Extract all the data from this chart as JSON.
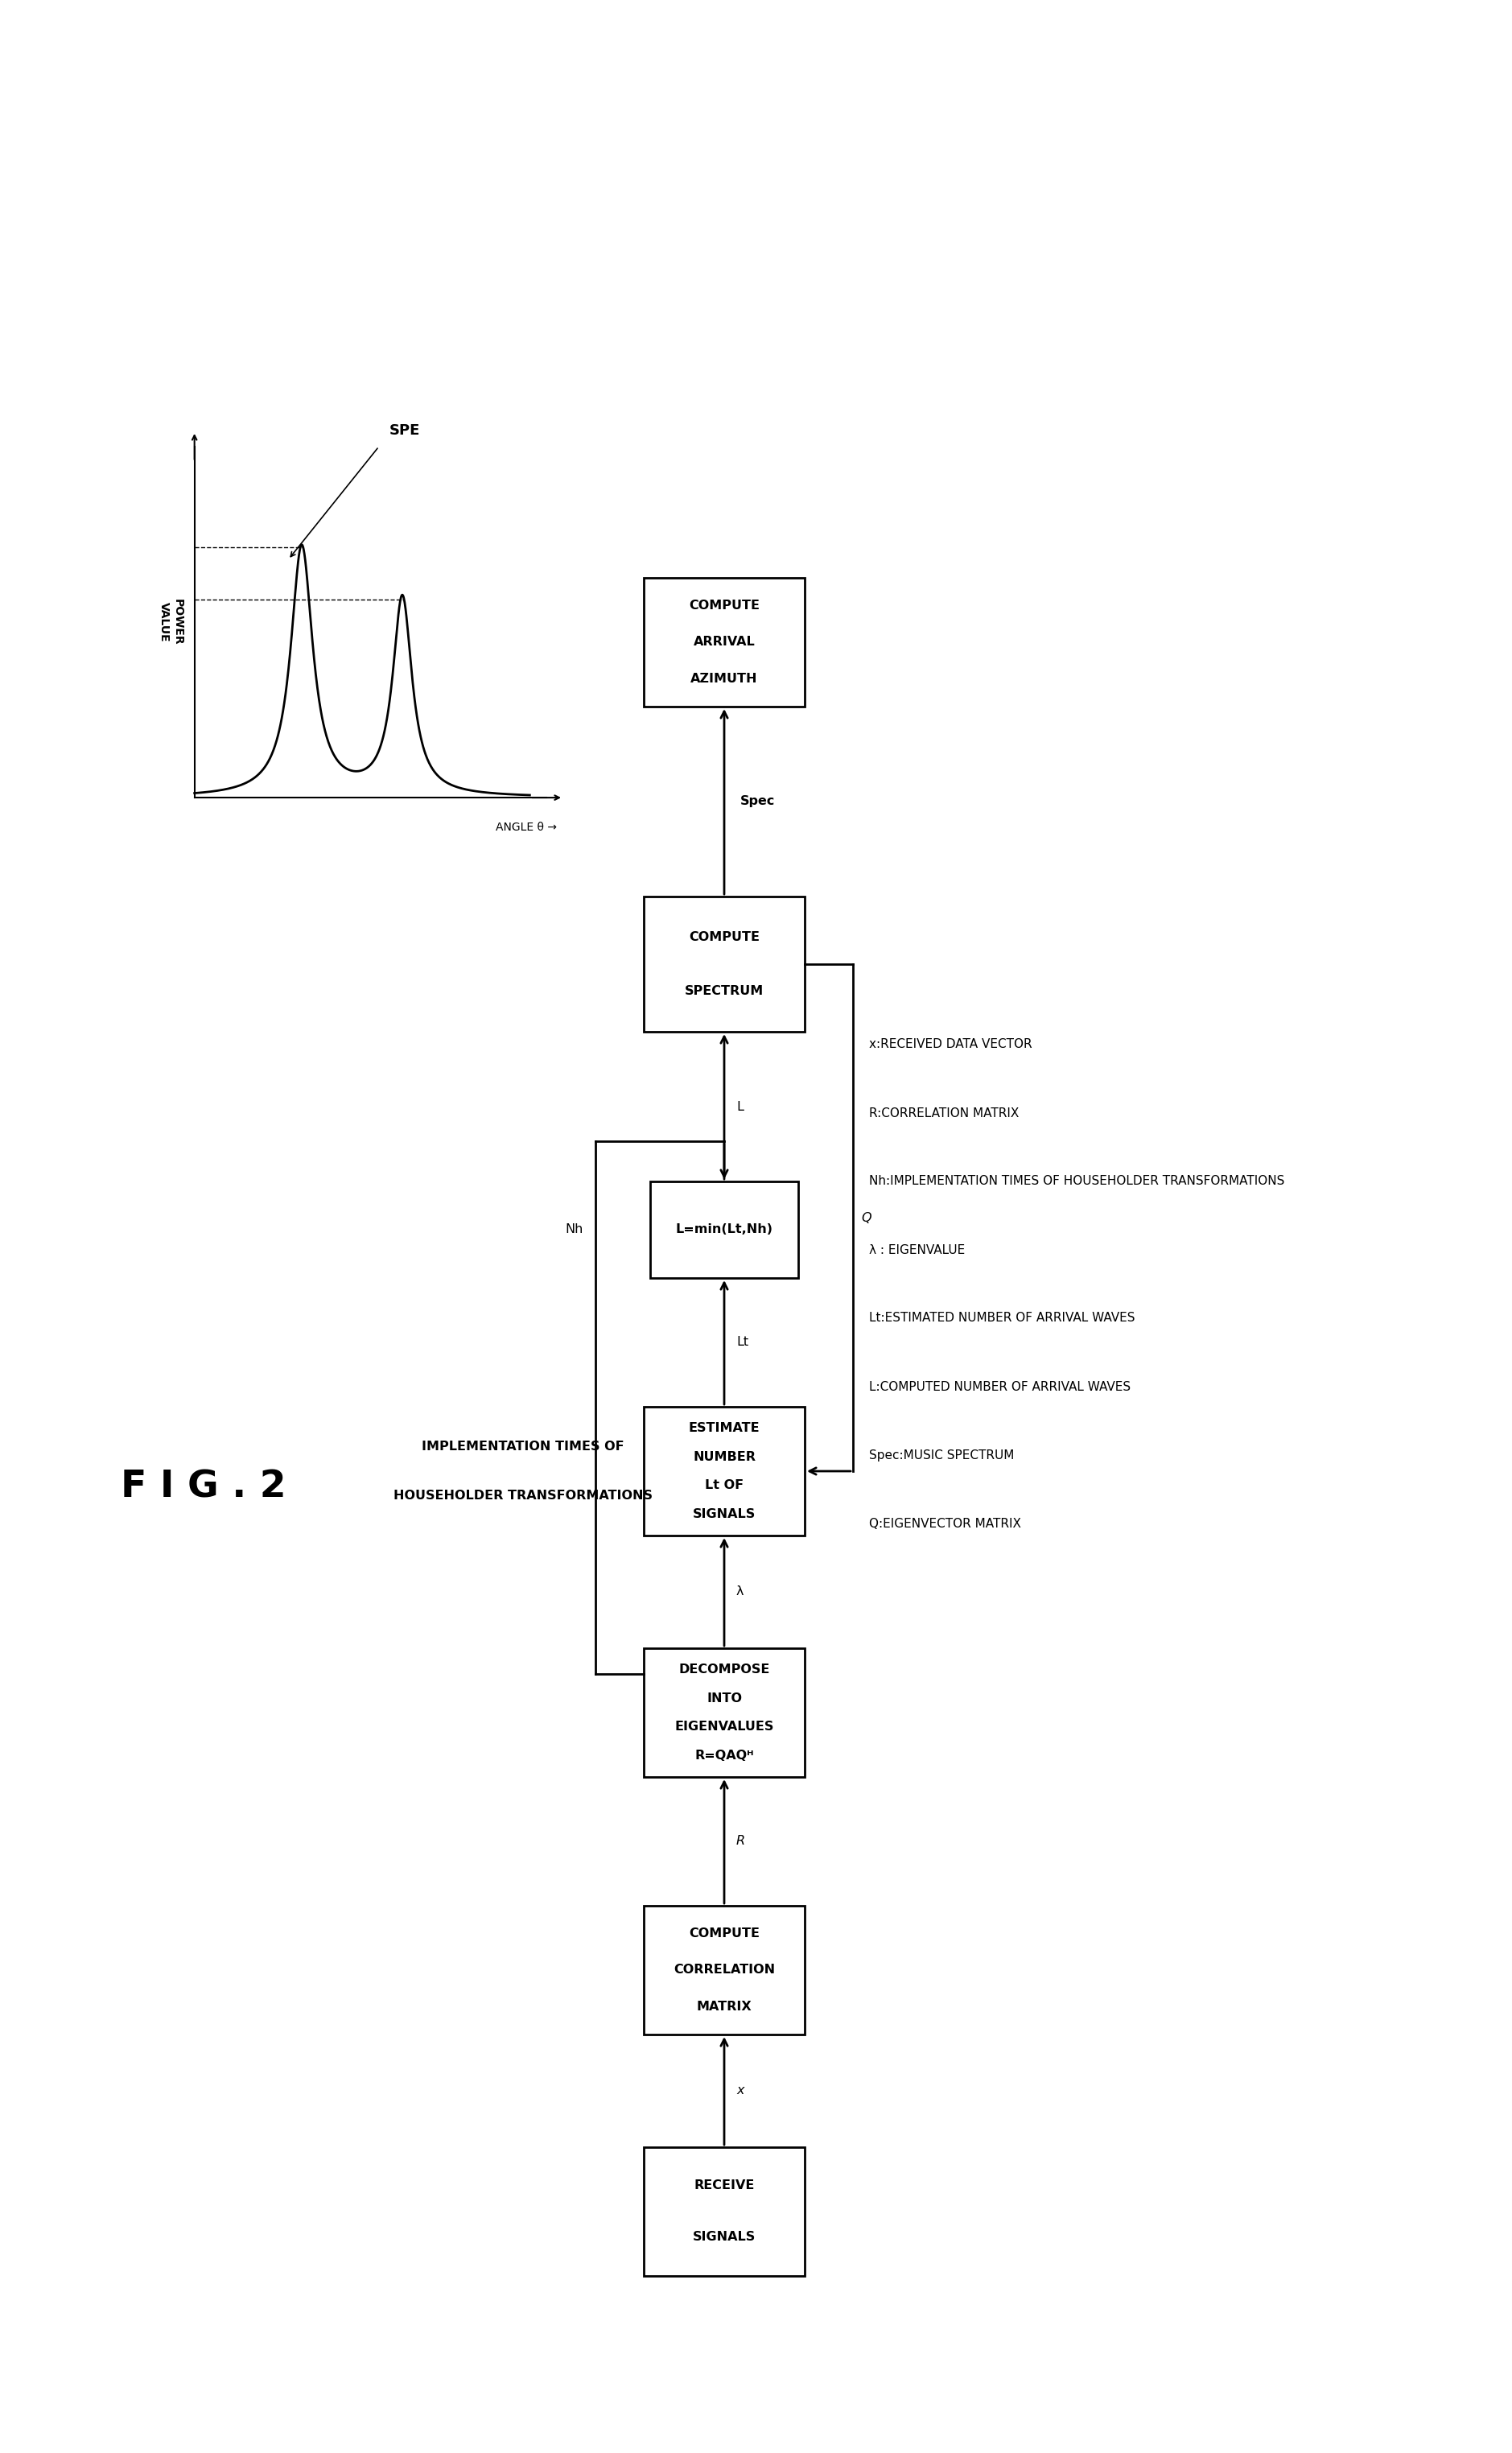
{
  "background_color": "#ffffff",
  "fig_title": "F I G . 2",
  "boxes": {
    "receive": {
      "lines": [
        "RECEIVE",
        "SIGNALS"
      ]
    },
    "corr": {
      "lines": [
        "COMPUTE",
        "CORRELATION",
        "MATRIX"
      ]
    },
    "decomp": {
      "lines": [
        "DECOMPOSE",
        "INTO",
        "EIGENVALUES",
        "R=QAQᴴ"
      ]
    },
    "estimate": {
      "lines": [
        "ESTIMATE",
        "NUMBER",
        "Lt OF",
        "SIGNALS"
      ]
    },
    "minbox": {
      "lines": [
        "L=min(Lt,Nh)"
      ]
    },
    "spectrum": {
      "lines": [
        "COMPUTE",
        "SPECTRUM"
      ]
    },
    "azimuth": {
      "lines": [
        "COMPUTE",
        "ARRIVAL",
        "AZIMUTH"
      ]
    }
  },
  "arrow_labels": {
    "x_to_corr": "x",
    "corr_to_decomp": "R",
    "decomp_to_est": "λ",
    "est_to_min": "Lt",
    "min_to_spec": "L",
    "spec_to_az": "Spec",
    "q_label": "Q",
    "nh_label": "Nh"
  },
  "impl_text_line1": "IMPLEMENTATION TIMES OF",
  "impl_text_line2": "HOUSEHOLDER TRANSFORMATIONS",
  "legend_lines": [
    "x:RECEIVED DATA VECTOR",
    "R:CORRELATION MATRIX",
    "Nh:IMPLEMENTATION TIMES OF HOUSEHOLDER TRANSFORMATIONS",
    "λ : EIGENVALUE",
    "Lt:ESTIMATED NUMBER OF ARRIVAL WAVES",
    "L:COMPUTED NUMBER OF ARRIVAL WAVES",
    "Spec:MUSIC SPECTRUM",
    "Q:EIGENVECTOR MATRIX"
  ],
  "spe_label": "SPE",
  "angle_label": "ANGLE θ →",
  "power_label": "POWER\nVALUE"
}
